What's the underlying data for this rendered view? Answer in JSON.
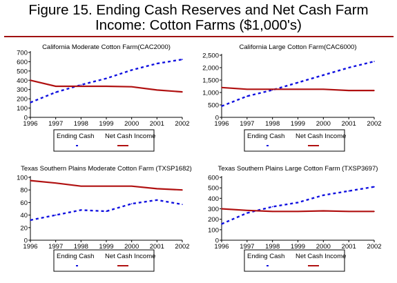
{
  "figure_title_line1": "Figure 15. Ending Cash Reserves and Net Cash Farm",
  "figure_title_line2": "Income:  Cotton Farms ($1,000's)",
  "colors": {
    "ending_cash": "#1010e0",
    "net_cash_income": "#b01010",
    "title_rule": "#a01010"
  },
  "chart_data": [
    {
      "type": "line",
      "title": "California Moderate Cotton Farm(CAC2000)",
      "x": [
        1996,
        1997,
        1998,
        1999,
        2000,
        2001,
        2002
      ],
      "xticks": [
        "1996",
        "1997",
        "1998",
        "1999",
        "2000",
        "2001",
        "2002"
      ],
      "ylim": [
        0,
        700
      ],
      "yticks": [
        "0",
        "100",
        "200",
        "300",
        "400",
        "500",
        "600",
        "700"
      ],
      "series": [
        {
          "name": "Ending Cash",
          "style": "dashed",
          "values": [
            160,
            270,
            350,
            420,
            510,
            580,
            625
          ]
        },
        {
          "name": "Net Cash Income",
          "style": "solid",
          "values": [
            400,
            335,
            335,
            335,
            330,
            295,
            275
          ]
        }
      ],
      "legend": "below"
    },
    {
      "type": "line",
      "title": "California Large Cotton Farm(CAC6000)",
      "x": [
        1996,
        1997,
        1998,
        1999,
        2000,
        2001,
        2002
      ],
      "xticks": [
        "1996",
        "1997",
        "1998",
        "1999",
        "2000",
        "2001",
        "2002"
      ],
      "ylim": [
        0,
        2500
      ],
      "yticks": [
        "0",
        "500",
        "1,000",
        "1,500",
        "2,000",
        "2,500"
      ],
      "series": [
        {
          "name": "Ending Cash",
          "style": "dashed",
          "values": [
            450,
            850,
            1100,
            1400,
            1700,
            2000,
            2250
          ]
        },
        {
          "name": "Net Cash Income",
          "style": "solid",
          "values": [
            1200,
            1130,
            1130,
            1130,
            1130,
            1080,
            1080
          ]
        }
      ],
      "legend": "below"
    },
    {
      "type": "line",
      "title": "Texas Southern Plains Moderate Cotton Farm (TXSP1682)",
      "x": [
        1996,
        1997,
        1998,
        1999,
        2000,
        2001,
        2002
      ],
      "xticks": [
        "1996",
        "1997",
        "1998",
        "1999",
        "2000",
        "2001",
        "2002"
      ],
      "ylim": [
        0,
        100
      ],
      "yticks": [
        "0",
        "20",
        "40",
        "60",
        "80",
        "100"
      ],
      "series": [
        {
          "name": "Ending Cash",
          "style": "dashed",
          "values": [
            32,
            40,
            48,
            46,
            58,
            64,
            57
          ]
        },
        {
          "name": "Net Cash Income",
          "style": "solid",
          "values": [
            95,
            91,
            86,
            86,
            86,
            82,
            80
          ]
        }
      ],
      "legend": "below"
    },
    {
      "type": "line",
      "title": "Texas Southern Plains Large Cotton Farm (TXSP3697)",
      "x": [
        1996,
        1997,
        1998,
        1999,
        2000,
        2001,
        2002
      ],
      "xticks": [
        "1996",
        "1997",
        "1998",
        "1999",
        "2000",
        "2001",
        "2002"
      ],
      "ylim": [
        0,
        600
      ],
      "yticks": [
        "0",
        "100",
        "200",
        "300",
        "400",
        "500",
        "600"
      ],
      "series": [
        {
          "name": "Ending Cash",
          "style": "dashed",
          "values": [
            155,
            260,
            320,
            360,
            430,
            470,
            510
          ]
        },
        {
          "name": "Net Cash Income",
          "style": "solid",
          "values": [
            300,
            285,
            275,
            275,
            280,
            275,
            275
          ]
        }
      ],
      "legend": "below"
    }
  ]
}
